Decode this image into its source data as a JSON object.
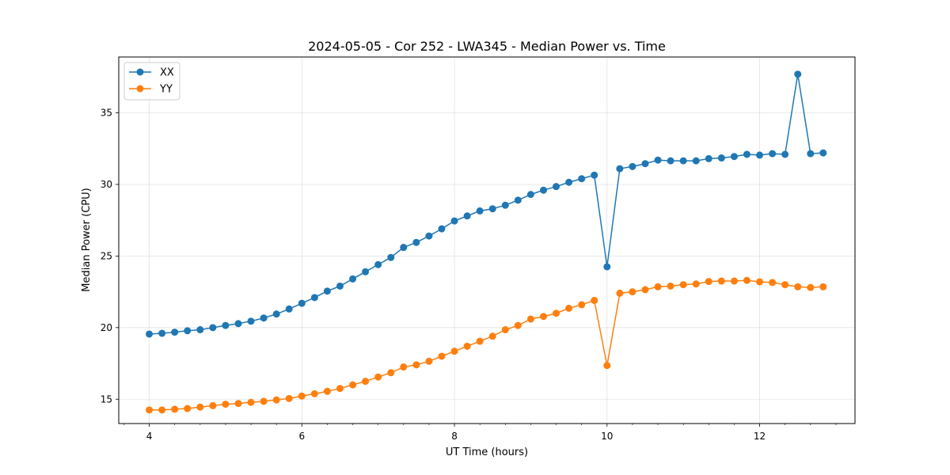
{
  "chart_data": {
    "type": "line",
    "title": "2024-05-05 - Cor 252 - LWA345 - Median Power vs. Time",
    "xlabel": "UT Time (hours)",
    "ylabel": "Median Power (CPU)",
    "xlim": [
      3.6,
      13.25
    ],
    "ylim": [
      13.3,
      38.9
    ],
    "xticks": [
      4,
      6,
      8,
      10,
      12
    ],
    "xticklabels": [
      "4",
      "6",
      "8",
      "10",
      "12"
    ],
    "yticks": [
      15,
      20,
      25,
      30,
      35
    ],
    "yticklabels": [
      "15",
      "20",
      "25",
      "30",
      "35"
    ],
    "grid": true,
    "legend_position": "top-left",
    "x": [
      4.0,
      4.167,
      4.333,
      4.5,
      4.667,
      4.833,
      5.0,
      5.167,
      5.333,
      5.5,
      5.667,
      5.833,
      6.0,
      6.167,
      6.333,
      6.5,
      6.667,
      6.833,
      7.0,
      7.167,
      7.333,
      7.5,
      7.667,
      7.833,
      8.0,
      8.167,
      8.333,
      8.5,
      8.667,
      8.833,
      9.0,
      9.167,
      9.333,
      9.5,
      9.667,
      9.833,
      10.0,
      10.167,
      10.333,
      10.5,
      10.667,
      10.833,
      11.0,
      11.167,
      11.333,
      11.5,
      11.667,
      11.833,
      12.0,
      12.167,
      12.333,
      12.5,
      12.667,
      12.833
    ],
    "series": [
      {
        "name": "XX",
        "color": "#1f77b4",
        "values": [
          19.55,
          19.6,
          19.68,
          19.78,
          19.85,
          20.0,
          20.15,
          20.28,
          20.45,
          20.67,
          20.95,
          21.3,
          21.7,
          22.1,
          22.55,
          22.9,
          23.4,
          23.9,
          24.4,
          24.9,
          25.6,
          25.95,
          26.4,
          26.9,
          27.45,
          27.8,
          28.15,
          28.3,
          28.55,
          28.9,
          29.3,
          29.6,
          29.85,
          30.15,
          30.4,
          30.65,
          24.25,
          31.1,
          31.25,
          31.45,
          31.7,
          31.65,
          31.65,
          31.65,
          31.8,
          31.85,
          31.95,
          32.1,
          32.05,
          32.15,
          32.1,
          37.7,
          32.15,
          32.2
        ]
      },
      {
        "name": "YY",
        "color": "#ff7f0e",
        "values": [
          14.25,
          14.25,
          14.3,
          14.35,
          14.45,
          14.55,
          14.65,
          14.7,
          14.78,
          14.85,
          14.95,
          15.05,
          15.22,
          15.38,
          15.55,
          15.75,
          16.0,
          16.25,
          16.55,
          16.85,
          17.25,
          17.4,
          17.65,
          18.0,
          18.35,
          18.7,
          19.05,
          19.4,
          19.85,
          20.15,
          20.6,
          20.78,
          21.0,
          21.35,
          21.6,
          21.9,
          17.35,
          22.4,
          22.5,
          22.65,
          22.85,
          22.9,
          23.0,
          23.05,
          23.22,
          23.25,
          23.25,
          23.3,
          23.2,
          23.15,
          23.0,
          22.85,
          22.8,
          22.85
        ]
      }
    ]
  }
}
